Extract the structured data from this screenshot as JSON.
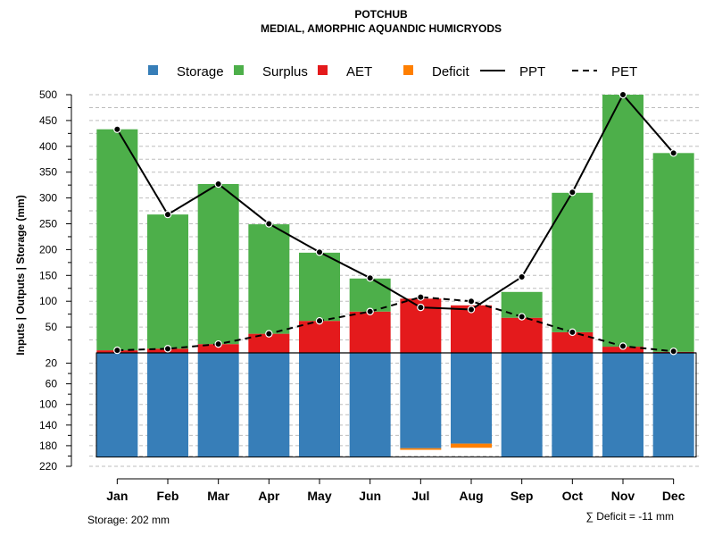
{
  "chart_data": {
    "type": "bar",
    "title": "POTCHUB",
    "subtitle": "MEDIAL, AMORPHIC AQUANDIC HUMICRYODS",
    "ylabel": "Inputs | Outputs | Storage    (mm)",
    "categories": [
      "Jan",
      "Feb",
      "Mar",
      "Apr",
      "May",
      "Jun",
      "Jul",
      "Aug",
      "Sep",
      "Oct",
      "Nov",
      "Dec"
    ],
    "ylim_upper": [
      0,
      500
    ],
    "ylim_lower": [
      0,
      220
    ],
    "upper_ticks": [
      50,
      100,
      150,
      200,
      250,
      300,
      350,
      400,
      450,
      500
    ],
    "lower_ticks": [
      20,
      60,
      100,
      140,
      180,
      220
    ],
    "grid": true,
    "legend_position": "top",
    "legend": [
      {
        "label": "Storage",
        "kind": "box",
        "color": "#377EB8"
      },
      {
        "label": "Surplus",
        "kind": "box",
        "color": "#4DAF4A"
      },
      {
        "label": "AET",
        "kind": "box",
        "color": "#E41A1C"
      },
      {
        "label": "Deficit",
        "kind": "box",
        "color": "#FF7F00"
      },
      {
        "label": "PPT",
        "kind": "solid-line",
        "color": "#000000"
      },
      {
        "label": "PET",
        "kind": "dashed-line",
        "color": "#000000"
      }
    ],
    "series": [
      {
        "name": "Storage",
        "color": "#377EB8",
        "values": [
          202,
          202,
          202,
          202,
          202,
          202,
          185,
          176,
          202,
          202,
          202,
          202
        ]
      },
      {
        "name": "Surplus",
        "color": "#4DAF4A",
        "values": [
          428,
          260,
          310,
          212,
          132,
          64,
          0,
          0,
          50,
          270,
          488,
          385
        ]
      },
      {
        "name": "AET",
        "color": "#E41A1C",
        "values": [
          5,
          8,
          17,
          37,
          62,
          80,
          105,
          92,
          68,
          40,
          12,
          2
        ]
      },
      {
        "name": "Deficit",
        "color": "#FF7F00",
        "values": [
          0,
          0,
          0,
          0,
          0,
          0,
          3,
          8,
          0,
          0,
          0,
          0
        ]
      },
      {
        "name": "PPT",
        "color": "#000000",
        "values": [
          433,
          268,
          327,
          250,
          195,
          145,
          88,
          84,
          147,
          311,
          500,
          387
        ]
      },
      {
        "name": "PET",
        "color": "#000000",
        "values": [
          5,
          8,
          17,
          37,
          62,
          80,
          108,
          100,
          70,
          40,
          13,
          3
        ]
      }
    ],
    "storage_capacity": 202,
    "storage_note": "Storage: 202 mm",
    "deficit_note": "∑ Deficit = -11 mm"
  }
}
